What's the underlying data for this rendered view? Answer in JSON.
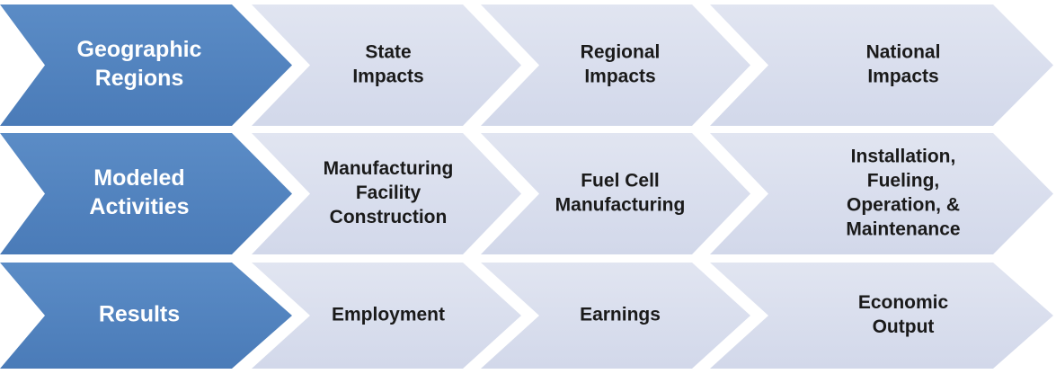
{
  "rows": [
    {
      "header": [
        "Geographic",
        "Regions"
      ],
      "items": [
        [
          "State",
          "Impacts"
        ],
        [
          "Regional",
          "Impacts"
        ],
        [
          "National",
          "Impacts"
        ]
      ]
    },
    {
      "header": [
        "Modeled",
        "Activities"
      ],
      "items": [
        [
          "Manufacturing",
          "Facility",
          "Construction"
        ],
        [
          "Fuel Cell",
          "Manufacturing"
        ],
        [
          "Installation,",
          "Fueling,",
          "Operation, &",
          "Maintenance"
        ]
      ]
    },
    {
      "header": [
        "Results"
      ],
      "items": [
        [
          "Employment"
        ],
        [
          "Earnings"
        ],
        [
          "Economic",
          "Output"
        ]
      ]
    }
  ]
}
